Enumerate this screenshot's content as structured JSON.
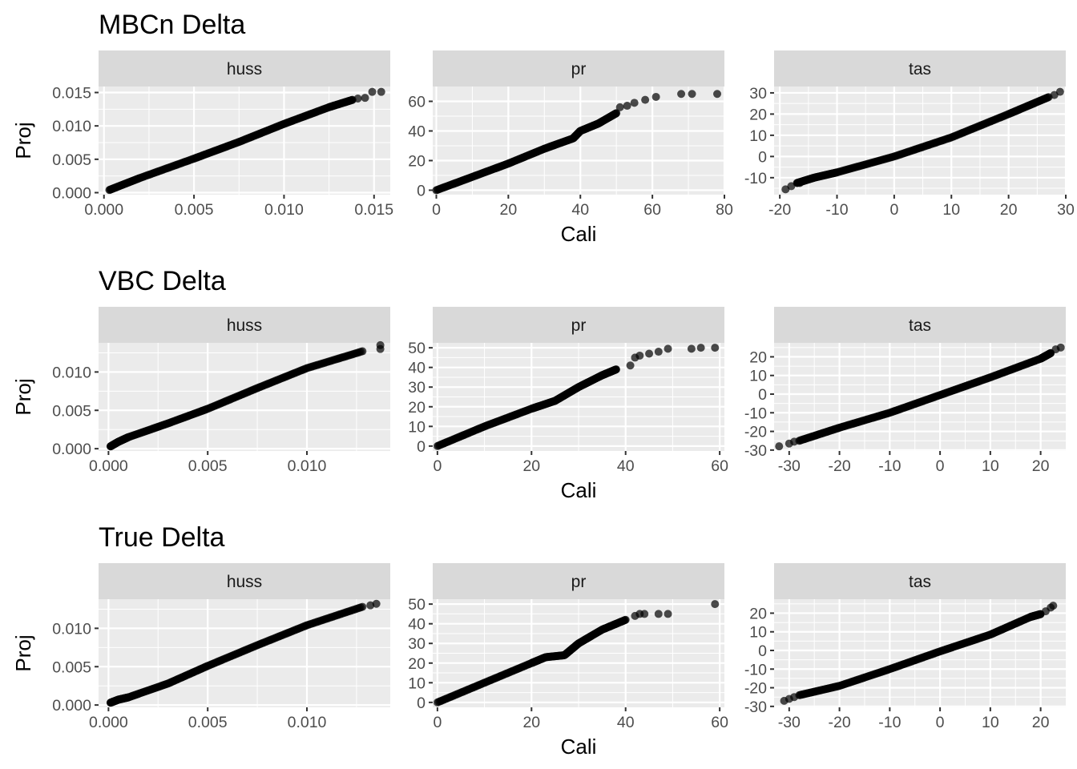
{
  "chart_data": [
    {
      "title": "MBCn Delta",
      "type": "scatter",
      "xlabel": "Cali",
      "ylabel": "Proj",
      "panels": [
        {
          "strip": "huss",
          "xlim": [
            -0.0003,
            0.0159
          ],
          "ylim": [
            -0.0003,
            0.0159
          ],
          "xticks": [
            {
              "v": 0,
              "label": "0.000"
            },
            {
              "v": 0.005,
              "label": "0.005"
            },
            {
              "v": 0.01,
              "label": "0.010"
            },
            {
              "v": 0.015,
              "label": "0.015"
            }
          ],
          "yticks": [
            {
              "v": 0,
              "label": "0.000"
            },
            {
              "v": 0.005,
              "label": "0.005"
            },
            {
              "v": 0.01,
              "label": "0.010"
            },
            {
              "v": 0.015,
              "label": "0.015"
            }
          ],
          "knots": [
            [
              0.0003,
              0.0004
            ],
            [
              0.002,
              0.0022
            ],
            [
              0.005,
              0.0051
            ],
            [
              0.0075,
              0.0076
            ],
            [
              0.01,
              0.0103
            ],
            [
              0.0125,
              0.0128
            ],
            [
              0.0138,
              0.0139
            ]
          ],
          "extra": [
            [
              0.0141,
              0.0141
            ],
            [
              0.0145,
              0.0142
            ],
            [
              0.0149,
              0.0151
            ],
            [
              0.0154,
              0.0151
            ]
          ]
        },
        {
          "strip": "pr",
          "xlim": [
            -1.0,
            80.0
          ],
          "ylim": [
            -3.0,
            70.0
          ],
          "xticks": [
            {
              "v": 0,
              "label": "0"
            },
            {
              "v": 20,
              "label": "20"
            },
            {
              "v": 40,
              "label": "40"
            },
            {
              "v": 60,
              "label": "60"
            },
            {
              "v": 80,
              "label": "80"
            }
          ],
          "yticks": [
            {
              "v": 0,
              "label": "0"
            },
            {
              "v": 20,
              "label": "20"
            },
            {
              "v": 40,
              "label": "40"
            },
            {
              "v": 60,
              "label": "60"
            }
          ],
          "knots": [
            [
              0,
              0
            ],
            [
              10,
              9
            ],
            [
              20,
              18
            ],
            [
              30,
              28
            ],
            [
              38,
              35
            ],
            [
              40,
              40
            ],
            [
              45,
              45
            ],
            [
              50,
              52
            ]
          ],
          "extra": [
            [
              51,
              56
            ],
            [
              53,
              57
            ],
            [
              55,
              59
            ],
            [
              58,
              61
            ],
            [
              61,
              63
            ],
            [
              68,
              65
            ],
            [
              71,
              65
            ],
            [
              78,
              65
            ]
          ]
        },
        {
          "strip": "tas",
          "xlim": [
            -21.0,
            30.0
          ],
          "ylim": [
            -18.0,
            33.0
          ],
          "xticks": [
            {
              "v": -20,
              "label": "-20"
            },
            {
              "v": -10,
              "label": "-10"
            },
            {
              "v": 0,
              "label": "0"
            },
            {
              "v": 10,
              "label": "10"
            },
            {
              "v": 20,
              "label": "20"
            },
            {
              "v": 30,
              "label": "30"
            }
          ],
          "yticks": [
            {
              "v": -10,
              "label": "-10"
            },
            {
              "v": 0,
              "label": "0"
            },
            {
              "v": 10,
              "label": "10"
            },
            {
              "v": 20,
              "label": "20"
            },
            {
              "v": 30,
              "label": "30"
            }
          ],
          "knots": [
            [
              -17,
              -12.5
            ],
            [
              -14,
              -10
            ],
            [
              -10,
              -7.5
            ],
            [
              0,
              0
            ],
            [
              10,
              9
            ],
            [
              20,
              20
            ],
            [
              27,
              28
            ]
          ],
          "extra": [
            [
              -19,
              -15.5
            ],
            [
              -18,
              -14
            ],
            [
              -16.5,
              -12.5
            ],
            [
              28,
              29
            ],
            [
              29,
              30.5
            ]
          ]
        }
      ]
    },
    {
      "title": "VBC Delta",
      "type": "scatter",
      "xlabel": "Cali",
      "ylabel": "Proj",
      "panels": [
        {
          "strip": "huss",
          "xlim": [
            -0.0005,
            0.0142
          ],
          "ylim": [
            -0.0003,
            0.0138
          ],
          "xticks": [
            {
              "v": 0,
              "label": "0.000"
            },
            {
              "v": 0.005,
              "label": "0.005"
            },
            {
              "v": 0.01,
              "label": "0.010"
            }
          ],
          "yticks": [
            {
              "v": 0,
              "label": "0.000"
            },
            {
              "v": 0.005,
              "label": "0.005"
            },
            {
              "v": 0.01,
              "label": "0.010"
            }
          ],
          "knots": [
            [
              0.0001,
              0.0003
            ],
            [
              0.0005,
              0.0009
            ],
            [
              0.001,
              0.0015
            ],
            [
              0.003,
              0.0033
            ],
            [
              0.005,
              0.0052
            ],
            [
              0.0075,
              0.0079
            ],
            [
              0.01,
              0.0105
            ],
            [
              0.0128,
              0.0127
            ]
          ],
          "extra": [
            [
              0.0137,
              0.0135
            ],
            [
              0.0137,
              0.013
            ]
          ]
        },
        {
          "strip": "pr",
          "xlim": [
            -1.0,
            61.0
          ],
          "ylim": [
            -2.5,
            52.5
          ],
          "xticks": [
            {
              "v": 0,
              "label": "0"
            },
            {
              "v": 20,
              "label": "20"
            },
            {
              "v": 40,
              "label": "40"
            },
            {
              "v": 60,
              "label": "60"
            }
          ],
          "yticks": [
            {
              "v": 0,
              "label": "0"
            },
            {
              "v": 10,
              "label": "10"
            },
            {
              "v": 20,
              "label": "20"
            },
            {
              "v": 30,
              "label": "30"
            },
            {
              "v": 40,
              "label": "40"
            },
            {
              "v": 50,
              "label": "50"
            }
          ],
          "knots": [
            [
              0,
              0
            ],
            [
              10,
              10
            ],
            [
              20,
              19
            ],
            [
              25,
              23
            ],
            [
              30,
              30
            ],
            [
              35,
              36
            ],
            [
              38,
              39
            ]
          ],
          "extra": [
            [
              41,
              41
            ],
            [
              42,
              45
            ],
            [
              43,
              46
            ],
            [
              45,
              47
            ],
            [
              47,
              48
            ],
            [
              49,
              49.5
            ],
            [
              54,
              49.5
            ],
            [
              56,
              50
            ],
            [
              59,
              50
            ]
          ]
        },
        {
          "strip": "tas",
          "xlim": [
            -33.0,
            25.0
          ],
          "ylim": [
            -30.5,
            27.5
          ],
          "xticks": [
            {
              "v": -30,
              "label": "-30"
            },
            {
              "v": -20,
              "label": "-20"
            },
            {
              "v": -10,
              "label": "-10"
            },
            {
              "v": 0,
              "label": "0"
            },
            {
              "v": 10,
              "label": "10"
            },
            {
              "v": 20,
              "label": "20"
            }
          ],
          "yticks": [
            {
              "v": -30,
              "label": "-30"
            },
            {
              "v": -20,
              "label": "-20"
            },
            {
              "v": -10,
              "label": "-10"
            },
            {
              "v": 0,
              "label": "0"
            },
            {
              "v": 10,
              "label": "10"
            },
            {
              "v": 20,
              "label": "20"
            }
          ],
          "knots": [
            [
              -28,
              -25
            ],
            [
              -20,
              -18
            ],
            [
              -10,
              -10
            ],
            [
              0,
              -0.5
            ],
            [
              10,
              9
            ],
            [
              20,
              19
            ],
            [
              22,
              22
            ]
          ],
          "extra": [
            [
              -32,
              -28
            ],
            [
              -30,
              -26.5
            ],
            [
              -29,
              -25.5
            ],
            [
              23,
              24
            ],
            [
              24,
              25
            ]
          ]
        }
      ]
    },
    {
      "title": "True Delta",
      "type": "scatter",
      "xlabel": "Cali",
      "ylabel": "Proj",
      "panels": [
        {
          "strip": "huss",
          "xlim": [
            -0.0005,
            0.0142
          ],
          "ylim": [
            -0.0003,
            0.0138
          ],
          "xticks": [
            {
              "v": 0,
              "label": "0.000"
            },
            {
              "v": 0.005,
              "label": "0.005"
            },
            {
              "v": 0.01,
              "label": "0.010"
            }
          ],
          "yticks": [
            {
              "v": 0,
              "label": "0.000"
            },
            {
              "v": 0.005,
              "label": "0.005"
            },
            {
              "v": 0.01,
              "label": "0.010"
            }
          ],
          "knots": [
            [
              0.0001,
              0.0003
            ],
            [
              0.0005,
              0.0007
            ],
            [
              0.001,
              0.001
            ],
            [
              0.003,
              0.0028
            ],
            [
              0.005,
              0.0051
            ],
            [
              0.0075,
              0.0078
            ],
            [
              0.01,
              0.0104
            ],
            [
              0.0128,
              0.0128
            ]
          ],
          "extra": [
            [
              0.0132,
              0.013
            ],
            [
              0.0135,
              0.0132
            ]
          ]
        },
        {
          "strip": "pr",
          "xlim": [
            -1.0,
            61.0
          ],
          "ylim": [
            -2.5,
            52.5
          ],
          "xticks": [
            {
              "v": 0,
              "label": "0"
            },
            {
              "v": 20,
              "label": "20"
            },
            {
              "v": 40,
              "label": "40"
            },
            {
              "v": 60,
              "label": "60"
            }
          ],
          "yticks": [
            {
              "v": 0,
              "label": "0"
            },
            {
              "v": 10,
              "label": "10"
            },
            {
              "v": 20,
              "label": "20"
            },
            {
              "v": 30,
              "label": "30"
            },
            {
              "v": 40,
              "label": "40"
            },
            {
              "v": 50,
              "label": "50"
            }
          ],
          "knots": [
            [
              0,
              0
            ],
            [
              10,
              10
            ],
            [
              20,
              20
            ],
            [
              23,
              23
            ],
            [
              27,
              24
            ],
            [
              30,
              30
            ],
            [
              35,
              37
            ],
            [
              40,
              42
            ]
          ],
          "extra": [
            [
              42,
              44
            ],
            [
              43,
              45
            ],
            [
              44,
              45
            ],
            [
              47,
              45
            ],
            [
              49,
              45
            ],
            [
              59,
              50
            ]
          ]
        },
        {
          "strip": "tas",
          "xlim": [
            -33.0,
            25.0
          ],
          "ylim": [
            -30.5,
            27.5
          ],
          "xticks": [
            {
              "v": -30,
              "label": "-30"
            },
            {
              "v": -20,
              "label": "-20"
            },
            {
              "v": -10,
              "label": "-10"
            },
            {
              "v": 0,
              "label": "0"
            },
            {
              "v": 10,
              "label": "10"
            },
            {
              "v": 20,
              "label": "20"
            }
          ],
          "yticks": [
            {
              "v": -30,
              "label": "-30"
            },
            {
              "v": -20,
              "label": "-20"
            },
            {
              "v": -10,
              "label": "-10"
            },
            {
              "v": 0,
              "label": "0"
            },
            {
              "v": 10,
              "label": "10"
            },
            {
              "v": 20,
              "label": "20"
            }
          ],
          "knots": [
            [
              -28,
              -24
            ],
            [
              -20,
              -19
            ],
            [
              -10,
              -10
            ],
            [
              0,
              -0.5
            ],
            [
              10,
              8.5
            ],
            [
              18,
              18
            ],
            [
              20,
              19.5
            ]
          ],
          "extra": [
            [
              -31,
              -27
            ],
            [
              -30,
              -26
            ],
            [
              -29,
              -25
            ],
            [
              21,
              21
            ],
            [
              22,
              23
            ],
            [
              22.5,
              24
            ]
          ]
        }
      ]
    }
  ]
}
